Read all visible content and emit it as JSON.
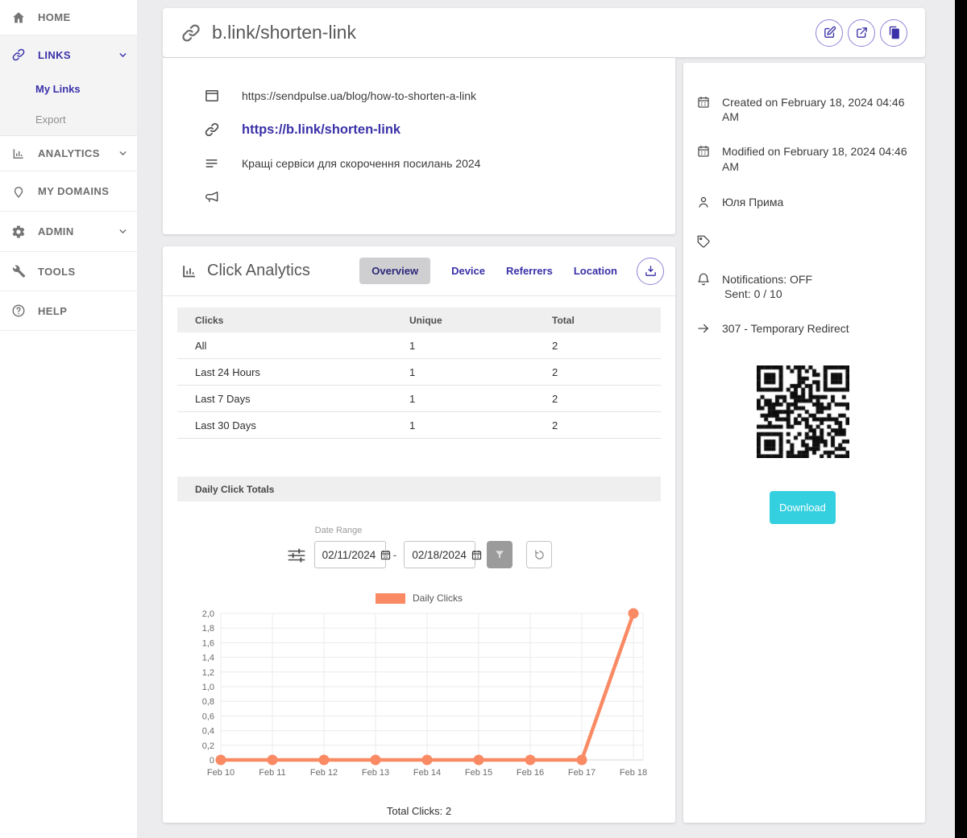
{
  "colors": {
    "accent_purple": "#3a31a8",
    "teal_button": "#35d0e0",
    "chart_salmon": "#f98a64"
  },
  "sidebar": {
    "items": [
      {
        "label": "HOME"
      },
      {
        "label": "LINKS"
      },
      {
        "label": "My Links"
      },
      {
        "label": "Export"
      },
      {
        "label": "ANALYTICS"
      },
      {
        "label": "MY DOMAINS"
      },
      {
        "label": "ADMIN"
      },
      {
        "label": "TOOLS"
      },
      {
        "label": "HELP"
      }
    ]
  },
  "header": {
    "title": "b.link/shorten-link"
  },
  "link_details": {
    "destination_url": "https://sendpulse.ua/blog/how-to-shorten-a-link",
    "short_url": "https://b.link/shorten-link",
    "page_title": "Кращі сервіси для скорочення посилань 2024",
    "campaign": ""
  },
  "info_panel": {
    "created_line": "Created on February 18, 2024 04:46 AM",
    "modified_line": "Modified on February 18, 2024 04:46 AM",
    "owner": "Юля Прима",
    "tags": "",
    "notifications_status": "Notifications: OFF",
    "notifications_sent": "Sent: 0 / 10",
    "redirect": "307 - Temporary Redirect",
    "download_label": "Download"
  },
  "analytics": {
    "title": "Click Analytics",
    "tabs": [
      {
        "label": "Overview",
        "active": true
      },
      {
        "label": "Device",
        "active": false
      },
      {
        "label": "Referrers",
        "active": false
      },
      {
        "label": "Location",
        "active": false
      }
    ],
    "table": {
      "headers": [
        "Clicks",
        "Unique",
        "Total"
      ],
      "rows": [
        [
          "All",
          "1",
          "2"
        ],
        [
          "Last 24 Hours",
          "1",
          "2"
        ],
        [
          "Last 7 Days",
          "1",
          "2"
        ],
        [
          "Last 30 Days",
          "1",
          "2"
        ]
      ]
    },
    "section_title": "Daily Click Totals",
    "date_range": {
      "label": "Date Range",
      "from": "02/11/2024",
      "separator": "-",
      "to": "02/18/2024"
    },
    "total_clicks": "Total Clicks: 2"
  },
  "chart_data": {
    "type": "line",
    "title": "",
    "legend": [
      "Daily Clicks"
    ],
    "x": [
      "Feb 10",
      "Feb 11",
      "Feb 12",
      "Feb 13",
      "Feb 14",
      "Feb 15",
      "Feb 16",
      "Feb 17",
      "Feb 18"
    ],
    "series": [
      {
        "name": "Daily Clicks",
        "values": [
          0,
          0,
          0,
          0,
          0,
          0,
          0,
          0,
          2
        ]
      }
    ],
    "ylim": [
      0,
      2
    ],
    "ytick_labels": [
      "0",
      "0,2",
      "0,4",
      "0,6",
      "0,8",
      "1,0",
      "1,2",
      "1,4",
      "1,6",
      "1,8",
      "2,0"
    ],
    "color": "#f98a64",
    "grid": true,
    "legend_position": "top",
    "xlabel": "",
    "ylabel": ""
  }
}
